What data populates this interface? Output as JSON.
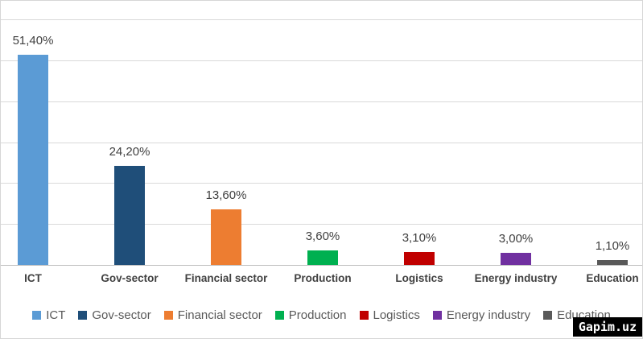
{
  "chart_data": {
    "type": "bar",
    "title": "",
    "xlabel": "",
    "ylabel": "",
    "categories": [
      "ICT",
      "Gov-sector",
      "Financial sector",
      "Production",
      "Logistics",
      "Energy industry",
      "Education"
    ],
    "values": [
      51.4,
      24.2,
      13.6,
      3.6,
      3.1,
      3.0,
      1.1
    ],
    "value_labels": [
      "51,40%",
      "24,20%",
      "13,60%",
      "3,60%",
      "3,10%",
      "3,00%",
      "1,10%"
    ],
    "colors": [
      "#5B9BD5",
      "#1F4E79",
      "#ED7D31",
      "#00B050",
      "#C00000",
      "#7030A0",
      "#595959"
    ],
    "ylim": [
      0,
      60
    ],
    "gridline_step": 10,
    "grid": true,
    "legend_position": "bottom"
  },
  "legend": {
    "items": [
      {
        "label": "ICT",
        "color": "#5B9BD5"
      },
      {
        "label": "Gov-sector",
        "color": "#1F4E79"
      },
      {
        "label": "Financial sector",
        "color": "#ED7D31"
      },
      {
        "label": "Production",
        "color": "#00B050"
      },
      {
        "label": "Logistics",
        "color": "#C00000"
      },
      {
        "label": "Energy industry",
        "color": "#7030A0"
      },
      {
        "label": "Education",
        "color": "#595959"
      }
    ]
  },
  "watermark": {
    "text": "Gapim.uz",
    "bg": "#000000",
    "fg": "#ffffff"
  }
}
